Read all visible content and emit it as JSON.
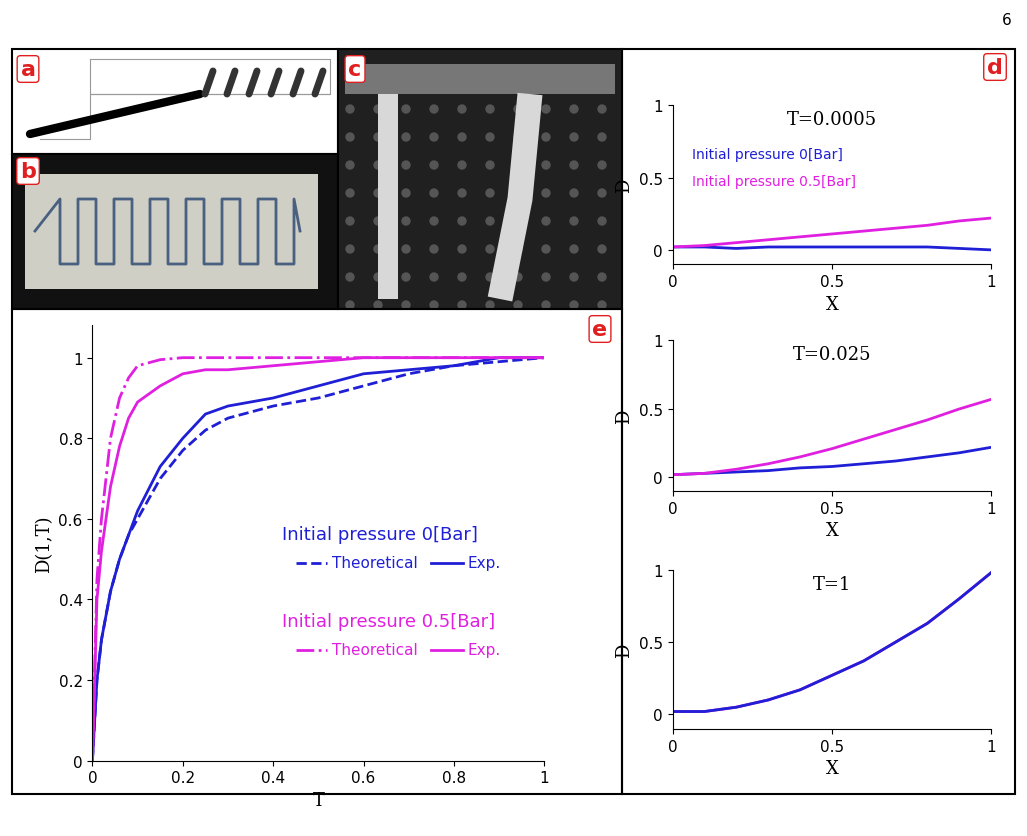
{
  "page_number": "6",
  "panel_labels": [
    "a",
    "b",
    "c",
    "d",
    "e"
  ],
  "chart_data": [
    {
      "type": "line",
      "title": "T=0.0005",
      "x_label": "X",
      "y_label": "D",
      "x": [
        0,
        0.1,
        0.2,
        0.3,
        0.4,
        0.5,
        0.6,
        0.7,
        0.8,
        0.9,
        1
      ],
      "xlim": [
        0,
        1
      ],
      "ylim": [
        -0.1,
        1
      ],
      "xticks": [
        0,
        0.5,
        1
      ],
      "yticks": [
        0,
        0.5,
        1
      ],
      "legend": "upper left",
      "series": [
        {
          "name": "Initial pressure 0[Bar]",
          "color": "#1f1fd6",
          "values": [
            0.02,
            0.02,
            0.01,
            0.02,
            0.02,
            0.02,
            0.02,
            0.02,
            0.02,
            0.01,
            0.0
          ]
        },
        {
          "name": "Initial pressure 0.5[Bar]",
          "color": "#e020e0",
          "values": [
            0.02,
            0.03,
            0.05,
            0.07,
            0.09,
            0.11,
            0.13,
            0.15,
            0.17,
            0.2,
            0.22
          ]
        }
      ]
    },
    {
      "type": "line",
      "title": "T=0.025",
      "x_label": "X",
      "y_label": "D",
      "x": [
        0,
        0.1,
        0.2,
        0.3,
        0.4,
        0.5,
        0.6,
        0.7,
        0.8,
        0.9,
        1
      ],
      "xlim": [
        0,
        1
      ],
      "ylim": [
        -0.1,
        1
      ],
      "xticks": [
        0,
        0.5,
        1
      ],
      "yticks": [
        0,
        0.5,
        1
      ],
      "series": [
        {
          "color": "#1f1fd6",
          "values": [
            0.02,
            0.03,
            0.04,
            0.05,
            0.07,
            0.08,
            0.1,
            0.12,
            0.15,
            0.18,
            0.22
          ]
        },
        {
          "color": "#e020e0",
          "values": [
            0.02,
            0.03,
            0.06,
            0.1,
            0.15,
            0.21,
            0.28,
            0.35,
            0.42,
            0.5,
            0.57
          ]
        }
      ]
    },
    {
      "type": "line",
      "title": "T=1",
      "x_label": "X",
      "y_label": "D",
      "x": [
        0,
        0.1,
        0.2,
        0.3,
        0.4,
        0.5,
        0.6,
        0.7,
        0.8,
        0.9,
        1
      ],
      "xlim": [
        0,
        1
      ],
      "ylim": [
        -0.1,
        1
      ],
      "xticks": [
        0,
        0.5,
        1
      ],
      "yticks": [
        0,
        0.5,
        1
      ],
      "series": [
        {
          "color": "#e020e0",
          "values": [
            0.02,
            0.02,
            0.05,
            0.1,
            0.17,
            0.27,
            0.37,
            0.5,
            0.63,
            0.8,
            0.98
          ]
        },
        {
          "color": "#1f1fd6",
          "values": [
            0.02,
            0.02,
            0.05,
            0.1,
            0.17,
            0.27,
            0.37,
            0.5,
            0.63,
            0.8,
            0.98
          ]
        }
      ]
    },
    {
      "type": "line",
      "x_label": "T",
      "y_label": "D(1,T)",
      "x": [
        0,
        0.01,
        0.02,
        0.04,
        0.06,
        0.08,
        0.1,
        0.15,
        0.2,
        0.25,
        0.3,
        0.4,
        0.5,
        0.6,
        0.7,
        0.8,
        0.9,
        1.0
      ],
      "xlim": [
        0,
        1
      ],
      "ylim": [
        0,
        1.08
      ],
      "xticks": [
        0,
        0.2,
        0.4,
        0.6,
        0.8,
        1
      ],
      "yticks": [
        0,
        0.2,
        0.4,
        0.6,
        0.8,
        1
      ],
      "legend": "center right",
      "series": [
        {
          "name": "Theoretical",
          "group": "Initial pressure 0[Bar]",
          "color": "#1f1fd6",
          "line_style": "dashed",
          "values": [
            0,
            0.2,
            0.3,
            0.42,
            0.5,
            0.56,
            0.6,
            0.7,
            0.77,
            0.82,
            0.85,
            0.88,
            0.9,
            0.93,
            0.96,
            0.98,
            0.99,
            1.0
          ]
        },
        {
          "name": "Exp.",
          "group": "Initial pressure 0[Bar]",
          "color": "#1f1fd6",
          "line_style": "solid",
          "values": [
            0,
            0.2,
            0.3,
            0.42,
            0.5,
            0.56,
            0.62,
            0.73,
            0.8,
            0.86,
            0.88,
            0.9,
            0.93,
            0.96,
            0.97,
            0.98,
            1.0,
            1.0
          ]
        },
        {
          "name": "Theoretical",
          "group": "Initial pressure 0.5[Bar]",
          "color": "#e020e0",
          "line_style": "dashdot",
          "values": [
            0,
            0.45,
            0.6,
            0.8,
            0.9,
            0.95,
            0.98,
            0.995,
            1.0,
            1.0,
            1.0,
            1.0,
            1.0,
            1.0,
            1.0,
            1.0,
            1.0,
            1.0
          ]
        },
        {
          "name": "Exp.",
          "group": "Initial pressure 0.5[Bar]",
          "color": "#e020e0",
          "line_style": "solid",
          "values": [
            0,
            0.4,
            0.52,
            0.68,
            0.78,
            0.85,
            0.89,
            0.93,
            0.96,
            0.97,
            0.97,
            0.98,
            0.99,
            1.0,
            1.0,
            1.0,
            1.0,
            1.0
          ]
        }
      ]
    }
  ]
}
